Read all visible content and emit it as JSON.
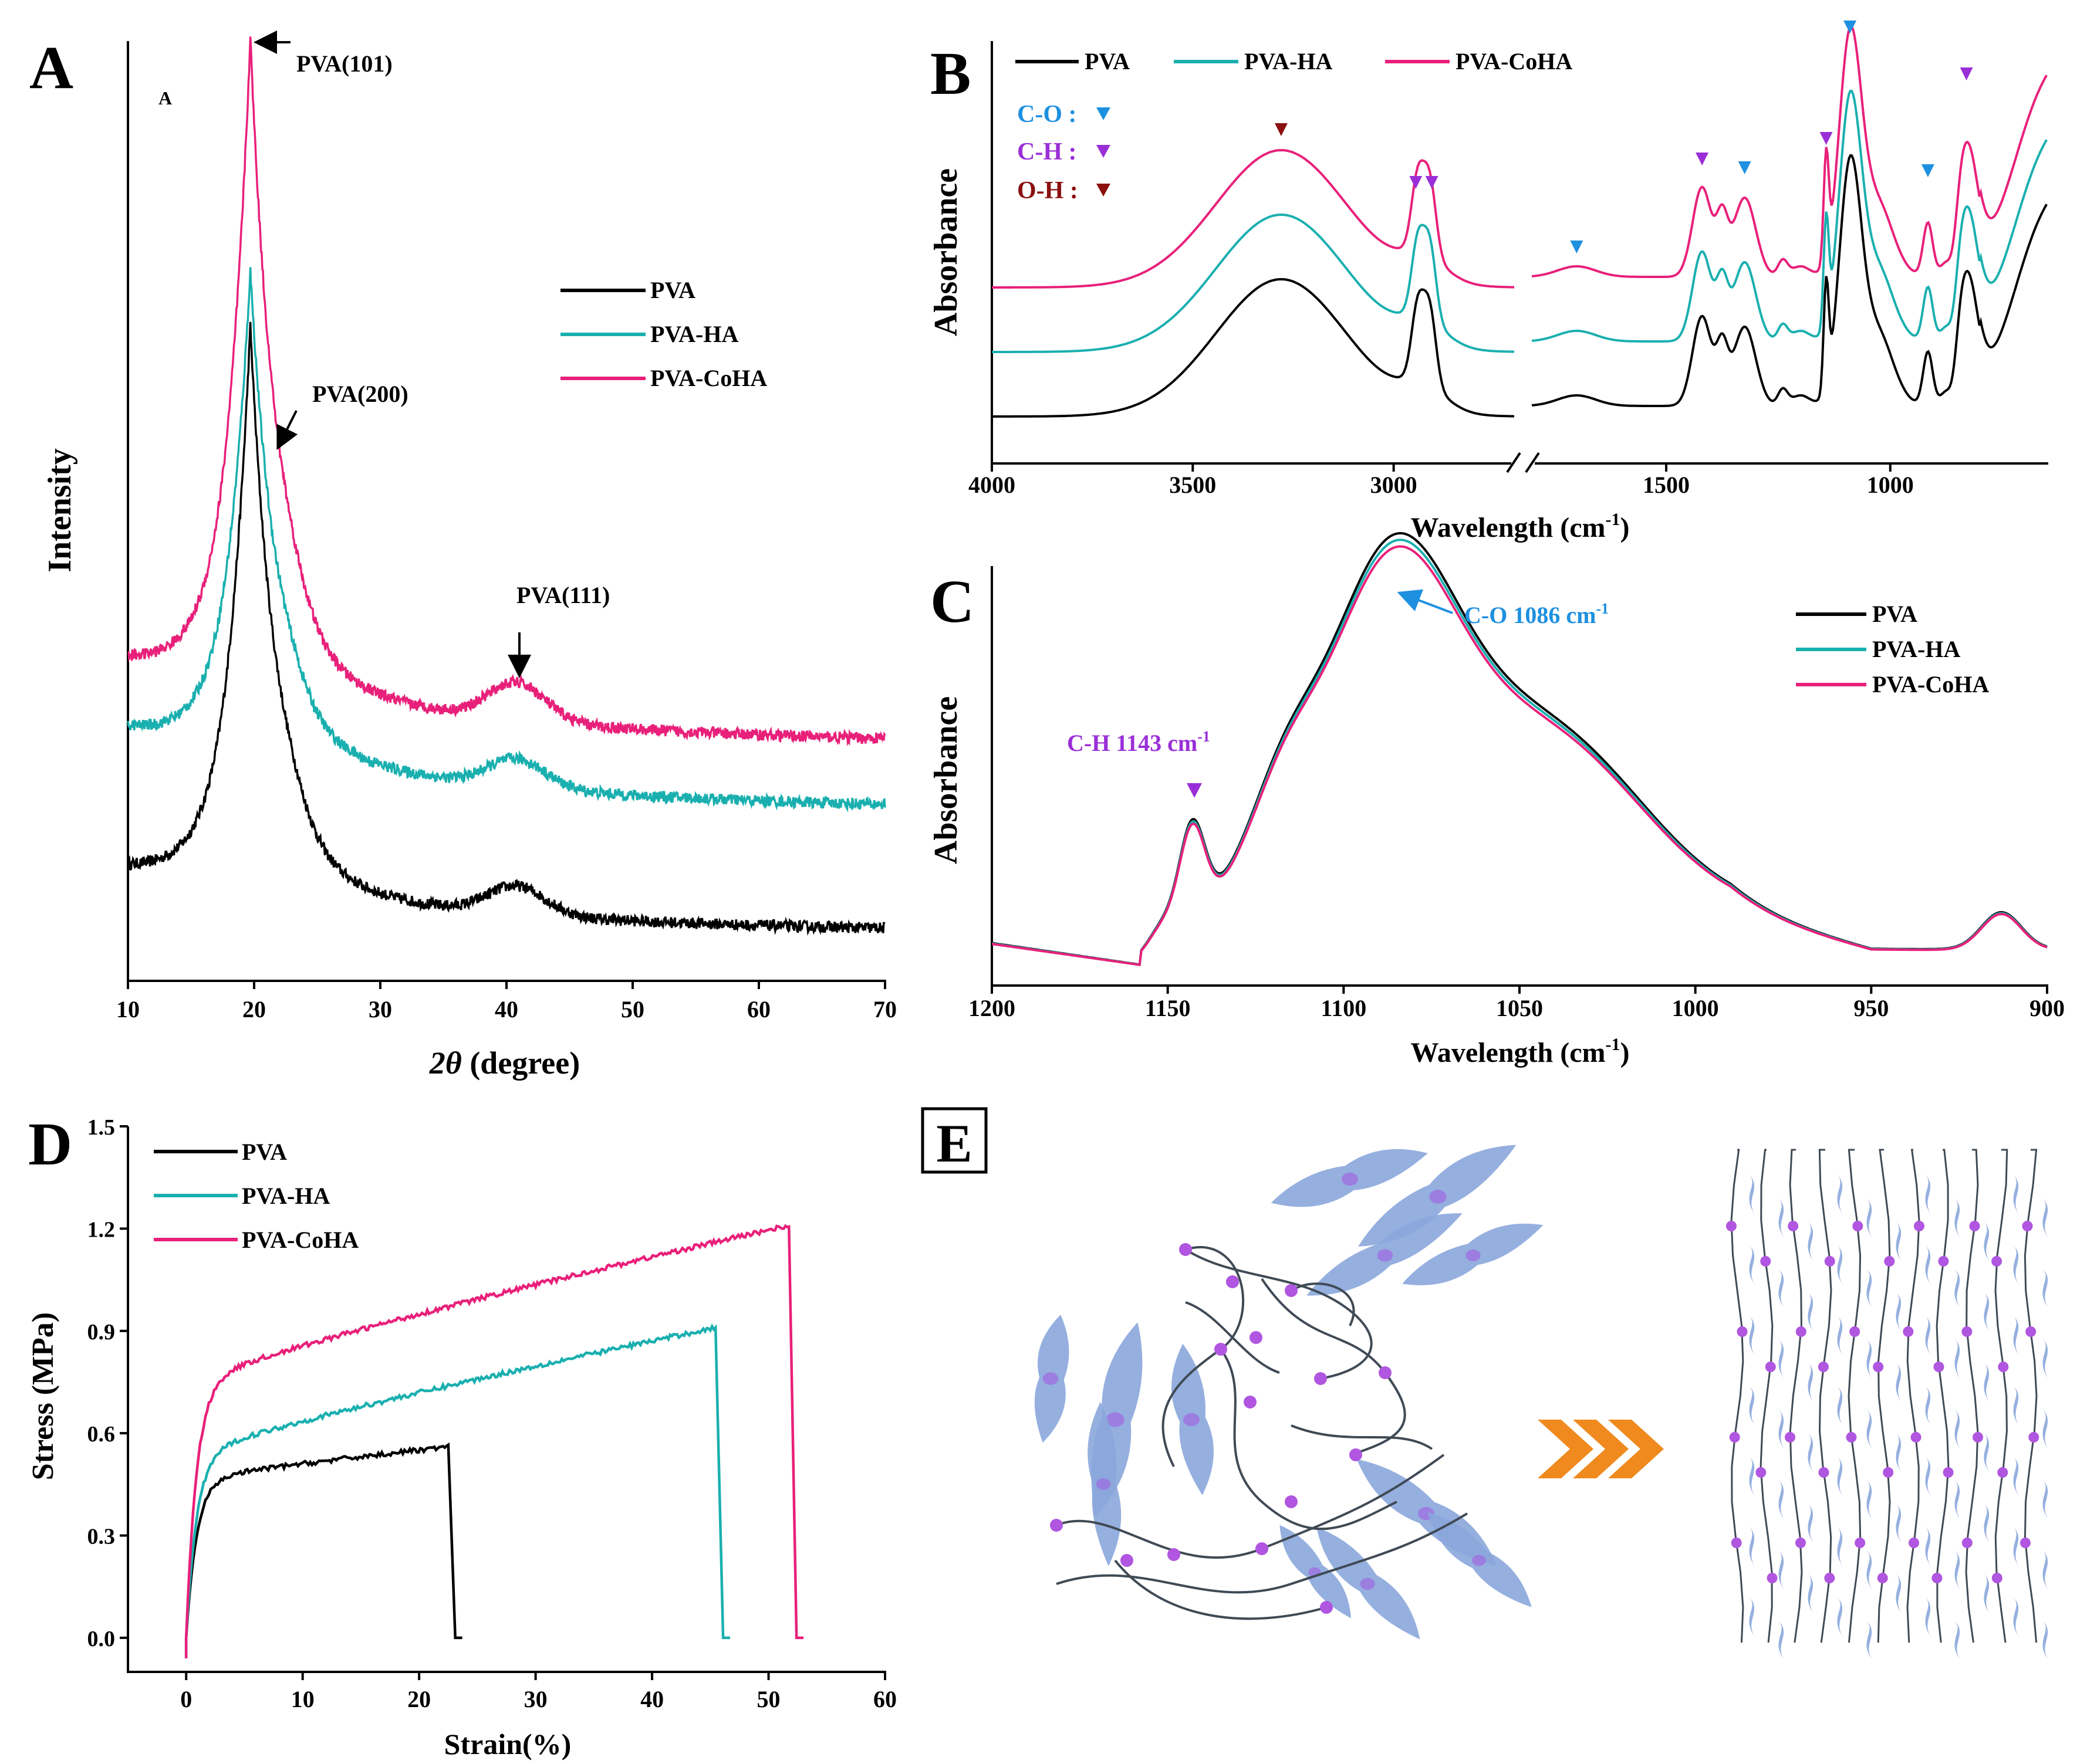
{
  "colors": {
    "pva": "#000000",
    "ha": "#1aafaf",
    "coha": "#e8207a",
    "co_marker": "#1e90e0",
    "ch_marker": "#9a2fd8",
    "oh_marker": "#8b1010",
    "cell": "#8aa6dc",
    "node": "#b056e0",
    "fiber": "#3f4a55",
    "chevron": "#f08a1e"
  },
  "panels": {
    "A": {
      "letter": "A",
      "inner_label": "A"
    },
    "B": {
      "letter": "B"
    },
    "C": {
      "letter": "C"
    },
    "D": {
      "letter": "D"
    },
    "E": {
      "letter": "E"
    }
  },
  "chart_data": [
    {
      "id": "A",
      "type": "line",
      "title": "",
      "xlabel_prefix": "2θ",
      "xlabel_suffix": " (degree)",
      "ylabel": "Intensity",
      "xlim": [
        10,
        70
      ],
      "xticks": [
        "10",
        "20",
        "30",
        "40",
        "50",
        "60",
        "70"
      ],
      "legend": [
        "PVA",
        "PVA-HA",
        "PVA-CoHA"
      ],
      "annotations": [
        "PVA(101)",
        "PVA(200)",
        "PVA(111)"
      ],
      "series": [
        {
          "name": "PVA",
          "offset": 0.05,
          "peak": 0.58,
          "p2": 0.03,
          "bg": 0.06
        },
        {
          "name": "PVA-HA",
          "offset": 0.18,
          "peak": 0.5,
          "p2": 0.03,
          "bg": 0.08
        },
        {
          "name": "PVA-CoHA",
          "offset": 0.25,
          "peak": 0.67,
          "p2": 0.04,
          "bg": 0.08
        }
      ]
    },
    {
      "id": "B",
      "type": "line",
      "xlabel": "Wavelength (cm",
      "xlabel_sup": "-1",
      "xlabel_end": ")",
      "ylabel": "Absorbance",
      "xticks": [
        "4000",
        "3500",
        "3000",
        "1500",
        "1000"
      ],
      "legend": [
        "PVA",
        "PVA-HA",
        "PVA-CoHA"
      ],
      "marker_legend": [
        {
          "label": "C-O :",
          "color_key": "co_marker"
        },
        {
          "label": "C-H :",
          "color_key": "ch_marker"
        },
        {
          "label": "O-H :",
          "color_key": "oh_marker"
        }
      ],
      "segments": {
        "left_range": [
          4000,
          2700
        ],
        "right_range": [
          1800,
          650
        ]
      }
    },
    {
      "id": "C",
      "type": "line",
      "xlabel": "Wavelength (cm",
      "xlabel_sup": "-1",
      "xlabel_end": ")",
      "ylabel": "Absorbance",
      "xlim": [
        1200,
        900
      ],
      "xticks": [
        "1200",
        "1150",
        "1100",
        "1050",
        "1000",
        "950",
        "900"
      ],
      "legend": [
        "PVA",
        "PVA-HA",
        "PVA-CoHA"
      ],
      "annotations": [
        {
          "text": "C-O 1086 cm",
          "sup": "-1"
        },
        {
          "text": "C-H 1143 cm",
          "sup": "-1"
        }
      ]
    },
    {
      "id": "D",
      "type": "line",
      "xlabel": "Strain(%)",
      "ylabel": "Stress (MPa)",
      "xlim": [
        -5,
        60
      ],
      "ylim": [
        -0.1,
        1.5
      ],
      "xticks": [
        0,
        10,
        20,
        30,
        40,
        50,
        60
      ],
      "yticks": [
        "0.0",
        "0.3",
        "0.6",
        "0.9",
        "1.2",
        "1.5"
      ],
      "legend": [
        "PVA",
        "PVA-HA",
        "PVA-CoHA"
      ],
      "series": [
        {
          "name": "PVA",
          "break_strain": 22.5,
          "max_stress": 0.56,
          "yield": 0.46
        },
        {
          "name": "PVA-HA",
          "break_strain": 45.5,
          "max_stress": 0.91,
          "yield": 0.53
        },
        {
          "name": "PVA-CoHA",
          "break_strain": 51.8,
          "max_stress": 1.21,
          "yield": 0.74
        }
      ]
    }
  ]
}
